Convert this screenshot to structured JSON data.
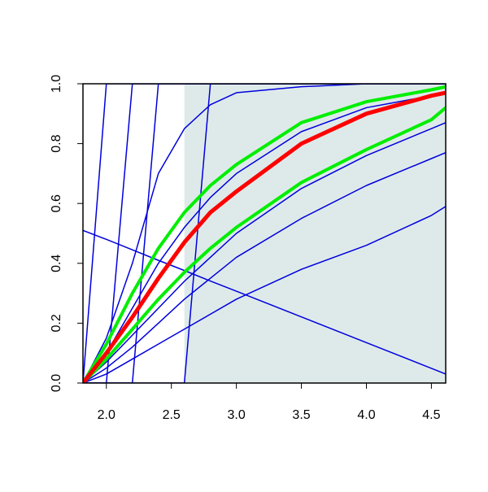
{
  "chart_data": {
    "type": "line",
    "x": [
      1.82,
      2.0,
      2.2,
      2.4,
      2.6,
      2.8,
      3.0,
      3.5,
      4.0,
      4.5,
      4.61
    ],
    "xlim": [
      1.82,
      4.61
    ],
    "ylim": [
      0,
      1
    ],
    "xticks": [
      {
        "value": 2,
        "label": "2.0"
      },
      2.5,
      {
        "value": 3,
        "label": "3.0"
      },
      3.5,
      {
        "value": 4,
        "label": "4.0"
      },
      4.5
    ],
    "yticks": [
      {
        "value": 0,
        "label": "0.0"
      },
      0.2,
      0.4,
      0.6,
      0.8,
      {
        "value": 1,
        "label": "1.0"
      }
    ],
    "shaded_region": [
      2.6,
      4.61
    ],
    "shade_color": "#deeaea",
    "series": [
      {
        "color": "#0000dd",
        "line_width": 1.5,
        "values": [
          0,
          1,
          1,
          1,
          1,
          1,
          1,
          1,
          1,
          1,
          1
        ]
      },
      {
        "color": "#0000dd",
        "line_width": 1.5,
        "values": [
          0,
          0,
          1,
          1,
          1,
          1,
          1,
          1,
          1,
          1,
          1
        ]
      },
      {
        "color": "#0000dd",
        "line_width": 1.5,
        "values": [
          0,
          0,
          0,
          1,
          1,
          1,
          1,
          1,
          1,
          1,
          1
        ]
      },
      {
        "color": "#0000dd",
        "line_width": 1.5,
        "values": [
          0,
          0,
          0,
          0,
          0,
          1,
          1,
          1,
          1,
          1,
          1
        ]
      },
      {
        "color": "#0000dd",
        "line_width": 1.5,
        "values": [
          0,
          0.15,
          0.4,
          0.7,
          0.85,
          0.93,
          0.97,
          0.99,
          1,
          1,
          1
        ]
      },
      {
        "color": "#0000dd",
        "line_width": 1.5,
        "values": [
          0,
          0.1,
          0.25,
          0.4,
          0.52,
          0.62,
          0.7,
          0.84,
          0.92,
          0.96,
          0.97
        ]
      },
      {
        "color": "#0000dd",
        "line_width": 1.5,
        "values": [
          0,
          0.07,
          0.16,
          0.25,
          0.34,
          0.42,
          0.5,
          0.65,
          0.76,
          0.85,
          0.87
        ]
      },
      {
        "color": "#0000dd",
        "line_width": 1.5,
        "values": [
          0,
          0.05,
          0.12,
          0.2,
          0.28,
          0.35,
          0.42,
          0.55,
          0.66,
          0.75,
          0.77
        ]
      },
      {
        "color": "#0000dd",
        "line_width": 1.5,
        "values": [
          0,
          0.03,
          0.08,
          0.13,
          0.18,
          0.23,
          0.28,
          0.38,
          0.46,
          0.56,
          0.59
        ]
      },
      {
        "color": "#0000dd",
        "line_width": 1.5,
        "values": [
          0.51,
          0.48,
          0.445,
          0.41,
          0.376,
          0.341,
          0.307,
          0.221,
          0.135,
          0.049,
          0.03
        ]
      },
      {
        "color": "#00ee00",
        "line_width": 4,
        "values": [
          0,
          0.13,
          0.3,
          0.45,
          0.57,
          0.66,
          0.73,
          0.87,
          0.94,
          0.98,
          0.99
        ]
      },
      {
        "color": "#00ee00",
        "line_width": 4,
        "values": [
          0,
          0.08,
          0.18,
          0.28,
          0.37,
          0.45,
          0.52,
          0.67,
          0.78,
          0.88,
          0.92
        ]
      },
      {
        "color": "#ff0000",
        "line_width": 5,
        "values": [
          0,
          0.1,
          0.22,
          0.35,
          0.47,
          0.57,
          0.64,
          0.8,
          0.9,
          0.96,
          0.97
        ]
      }
    ]
  }
}
